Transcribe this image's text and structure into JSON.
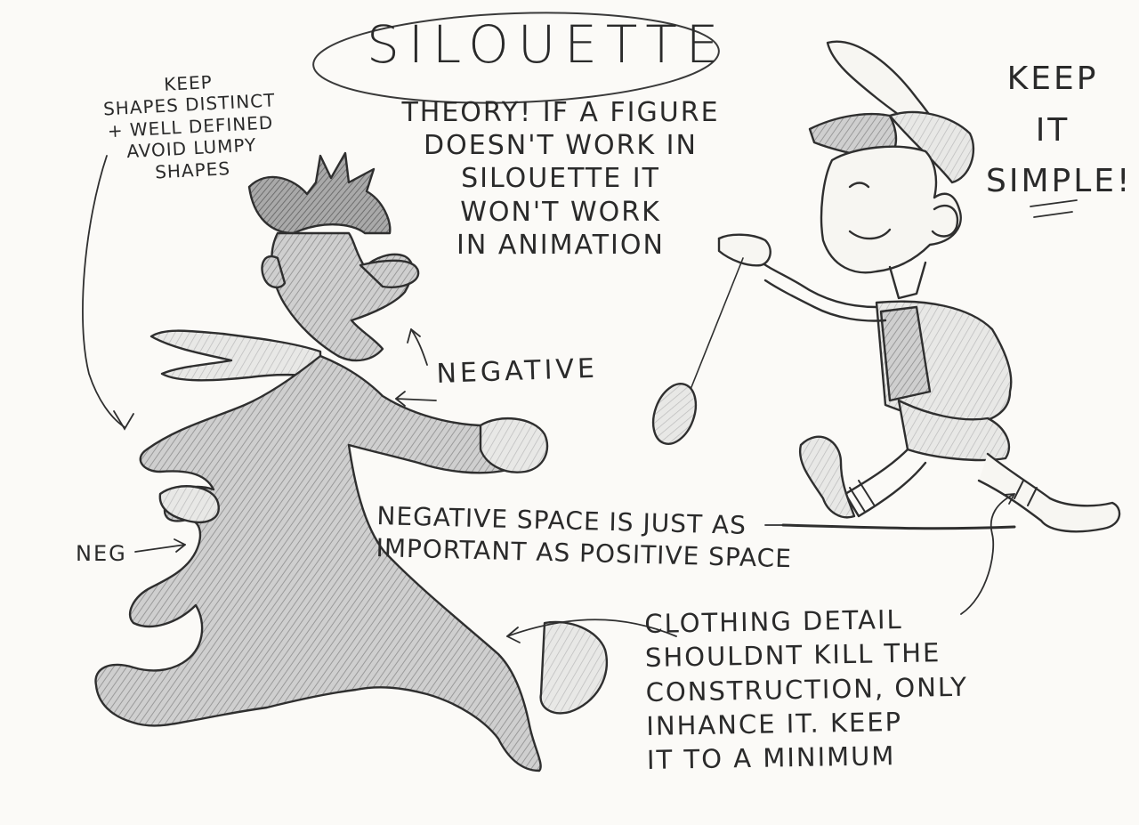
{
  "title": "SILOUETTE",
  "theory_lines": [
    "THEORY! IF A FIGURE",
    "DOESN'T WORK IN",
    "SILOUETTE IT",
    "WON'T WORK",
    "IN ANIMATION"
  ],
  "keep_simple_lines": [
    "KEEP",
    "IT",
    "SIMPLE!"
  ],
  "keep_shapes_lines": [
    "KEEP",
    "SHAPES DISTINCT",
    "+ WELL DEFINED",
    "AVOID LUMPY",
    "SHAPES"
  ],
  "negative_label": "NEGATIVE",
  "neg_label": "NEG",
  "negative_space_lines": [
    "NEGATIVE SPACE IS JUST AS",
    "IMPORTANT AS POSITIVE SPACE"
  ],
  "clothing_lines": [
    "CLOTHING DETAIL",
    "SHOULDNT KILL THE",
    "CONSTRUCTION, ONLY",
    "INHANCE IT. KEEP",
    "IT TO A MINIMUM"
  ],
  "colors": {
    "paper": "#fbfaf7",
    "pencil": "#2b2b2b",
    "shade": "#8f8f8f"
  }
}
